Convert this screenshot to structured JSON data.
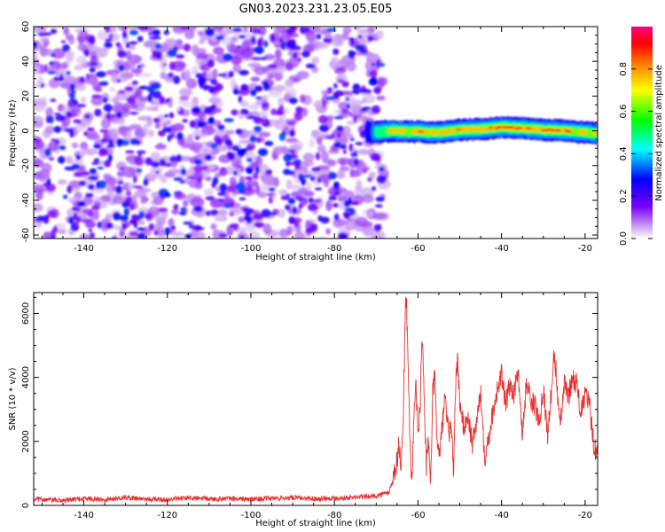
{
  "figure": {
    "title": "GN03.2023.231.23.05.E05"
  },
  "chart_data": [
    {
      "type": "heatmap",
      "title": "GN03.2023.231.23.05.E05",
      "xlabel": "Height of straight line (km)",
      "ylabel": "Frequency (Hz)",
      "xlim": [
        -152,
        -17
      ],
      "ylim": [
        -62,
        60
      ],
      "xticks": [
        -140,
        -120,
        -100,
        -80,
        -60,
        -40,
        -20
      ],
      "yticks": [
        -60,
        -40,
        -20,
        0,
        20,
        40,
        60
      ],
      "colorbar": {
        "label": "Normalized spectral amplitude",
        "range": [
          0,
          1
        ],
        "ticks": [
          0.0,
          0.2,
          0.4,
          0.6,
          0.8
        ],
        "tick_labels": [
          "0.0",
          "0.2",
          "0.4",
          "0.6",
          "0.8"
        ],
        "colormap": [
          "#ffffff",
          "#8a2be2",
          "#0000ff",
          "#00ffff",
          "#00ff00",
          "#ffff00",
          "#ff8000",
          "#ff0000",
          "#ff0080"
        ]
      },
      "noise_region": {
        "x_range": [
          -152,
          -68
        ],
        "freq_range": [
          -62,
          60
        ],
        "amplitude_range": [
          0.0,
          0.3
        ]
      },
      "signal_band": {
        "x": [
          -72,
          -66,
          -60,
          -55,
          -50,
          -45,
          -40,
          -35,
          -30,
          -25,
          -20,
          -17
        ],
        "center_freq": [
          -1.0,
          0.0,
          -0.5,
          -1.0,
          0.5,
          1.0,
          2.0,
          1.5,
          0.5,
          0.0,
          -1.0,
          -1.5
        ],
        "peak_amplitude": [
          0.3,
          0.7,
          0.8,
          0.7,
          0.8,
          0.75,
          0.9,
          0.85,
          0.9,
          0.8,
          0.75,
          0.7
        ],
        "half_width_hz": 3
      }
    },
    {
      "type": "line",
      "xlabel": "Height of straight line (km)",
      "ylabel": "SNR (10 * v/v)",
      "xlim": [
        -152,
        -17
      ],
      "ylim": [
        0,
        6650
      ],
      "xticks": [
        -140,
        -120,
        -100,
        -80,
        -60,
        -40,
        -20
      ],
      "yticks": [
        0,
        2000,
        4000,
        6000
      ],
      "color": "#e83030",
      "series": [
        {
          "x": [
            -152,
            -145,
            -140,
            -135,
            -130,
            -125,
            -120,
            -115,
            -110,
            -105,
            -100,
            -95,
            -90,
            -85,
            -80,
            -75,
            -70,
            -67,
            -66,
            -65,
            -64.5,
            -64,
            -63.5,
            -63,
            -62.8,
            -62.5,
            -62,
            -61.5,
            -61,
            -60.5,
            -60,
            -59.5,
            -59,
            -58.5,
            -58,
            -57.5,
            -57,
            -56.5,
            -56,
            -55.5,
            -55,
            -54.5,
            -54,
            -53.5,
            -53,
            -52.5,
            -52,
            -51.5,
            -51,
            -50.5,
            -50,
            -49,
            -48,
            -47,
            -46,
            -45,
            -44,
            -43,
            -42,
            -41,
            -40,
            -39,
            -38,
            -37,
            -36,
            -35,
            -34,
            -33,
            -32,
            -31,
            -30,
            -29,
            -28,
            -27.5,
            -27,
            -26,
            -25,
            -24,
            -23,
            -22,
            -21,
            -20,
            -19,
            -18,
            -17
          ],
          "y": [
            200,
            150,
            220,
            180,
            250,
            200,
            180,
            230,
            200,
            210,
            190,
            220,
            240,
            210,
            230,
            250,
            300,
            400,
            800,
            1400,
            2000,
            1000,
            3000,
            6300,
            6650,
            5000,
            2500,
            700,
            2500,
            3700,
            2300,
            3000,
            5500,
            3300,
            1200,
            2200,
            400,
            3500,
            4000,
            2300,
            1500,
            2000,
            2800,
            3300,
            2500,
            2300,
            2500,
            1000,
            3800,
            4600,
            3200,
            2400,
            2800,
            1900,
            2600,
            3500,
            1500,
            2200,
            3000,
            3600,
            4100,
            3100,
            3800,
            3500,
            4200,
            2200,
            3900,
            3300,
            3100,
            2600,
            3700,
            2200,
            3600,
            4600,
            4300,
            2400,
            3800,
            3400,
            4000,
            3800,
            2800,
            3500,
            3200,
            2000,
            1500
          ]
        }
      ]
    }
  ]
}
